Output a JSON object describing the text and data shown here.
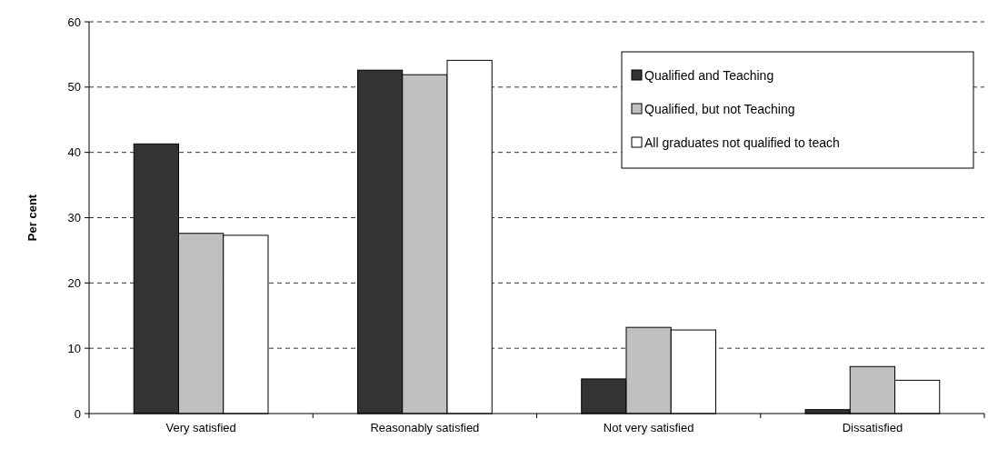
{
  "chart_data": {
    "type": "bar",
    "ylabel": "Per cent",
    "categories": [
      "Very satisfied",
      "Reasonably satisfied",
      "Not very satisfied",
      "Dissatisfied"
    ],
    "series": [
      {
        "name": "Qualified and Teaching",
        "color": "#333333",
        "values": [
          41.3,
          52.6,
          5.3,
          0.6
        ]
      },
      {
        "name": "Qualified, but not Teaching",
        "color": "#c0c0c0",
        "values": [
          27.6,
          51.9,
          13.2,
          7.2
        ]
      },
      {
        "name": "All graduates not qualified to teach",
        "color": "#ffffff",
        "values": [
          27.3,
          54.1,
          12.8,
          5.1
        ]
      }
    ],
    "ylim": [
      0,
      60
    ],
    "yticks": [
      0,
      10,
      20,
      30,
      40,
      50,
      60
    ],
    "grid": "y",
    "legend": "top right"
  }
}
